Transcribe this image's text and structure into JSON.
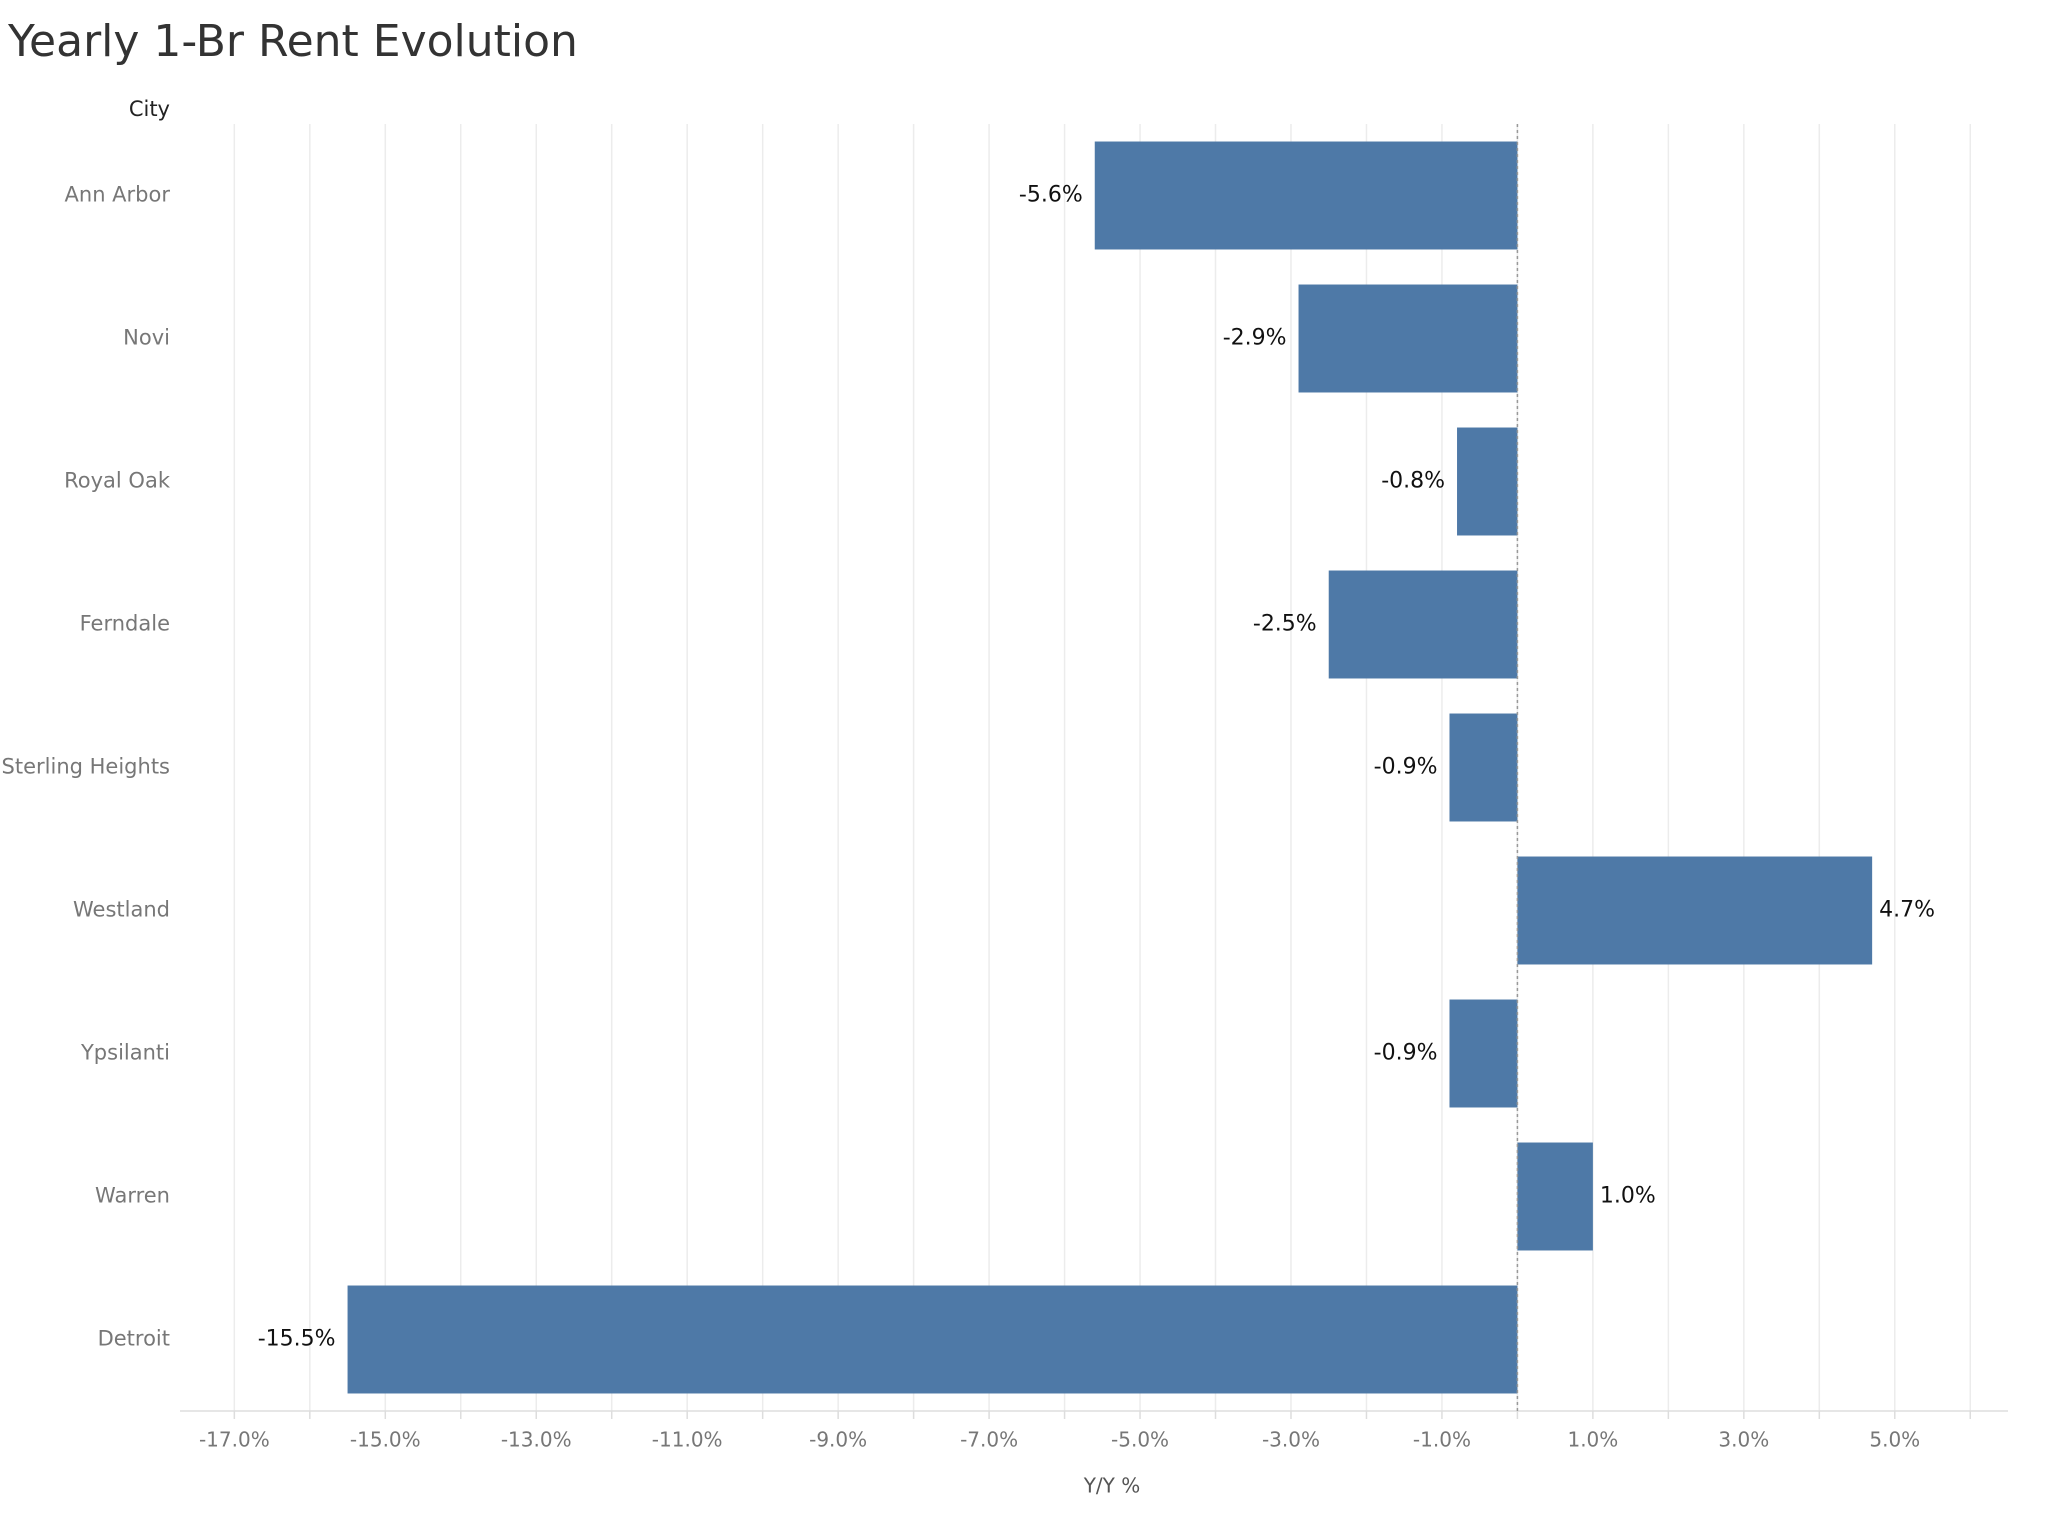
{
  "chart_data": {
    "type": "hbar",
    "title": "Yearly 1-Br Rent Evolution",
    "y_header": "City",
    "x_label": "Y/Y %",
    "categories": [
      "Ann Arbor",
      "Novi",
      "Royal Oak",
      "Ferndale",
      "Sterling Heights",
      "Westland",
      "Ypsilanti",
      "Warren",
      "Detroit"
    ],
    "values": [
      -5.6,
      -2.9,
      -0.8,
      -2.5,
      -0.9,
      4.7,
      -0.9,
      1.0,
      -15.5
    ],
    "value_labels": [
      "-5.6%",
      "-2.9%",
      "-0.8%",
      "-2.5%",
      "-0.9%",
      "4.7%",
      "-0.9%",
      "1.0%",
      "-15.5%"
    ],
    "color": "#4e79a7",
    "xlim": [
      -17.72,
      6.5
    ],
    "xticks": [
      {
        "value": -17,
        "label": "-17.0%"
      },
      {
        "value": -15,
        "label": "-15.0%"
      },
      {
        "value": -13,
        "label": "-13.0%"
      },
      {
        "value": -11,
        "label": "-11.0%"
      },
      {
        "value": -9,
        "label": "-9.0%"
      },
      {
        "value": -7,
        "label": "-7.0%"
      },
      {
        "value": -5,
        "label": "-5.0%"
      },
      {
        "value": -3,
        "label": "-3.0%"
      },
      {
        "value": -1,
        "label": "-1.0%"
      },
      {
        "value": 1,
        "label": "1.0%"
      },
      {
        "value": 3,
        "label": "3.0%"
      },
      {
        "value": 5,
        "label": "5.0%"
      }
    ],
    "xminorticks": [
      -16,
      -14,
      -12,
      -10,
      -8,
      -6,
      -4,
      -2,
      0,
      2,
      4,
      6
    ],
    "grid": true
  }
}
